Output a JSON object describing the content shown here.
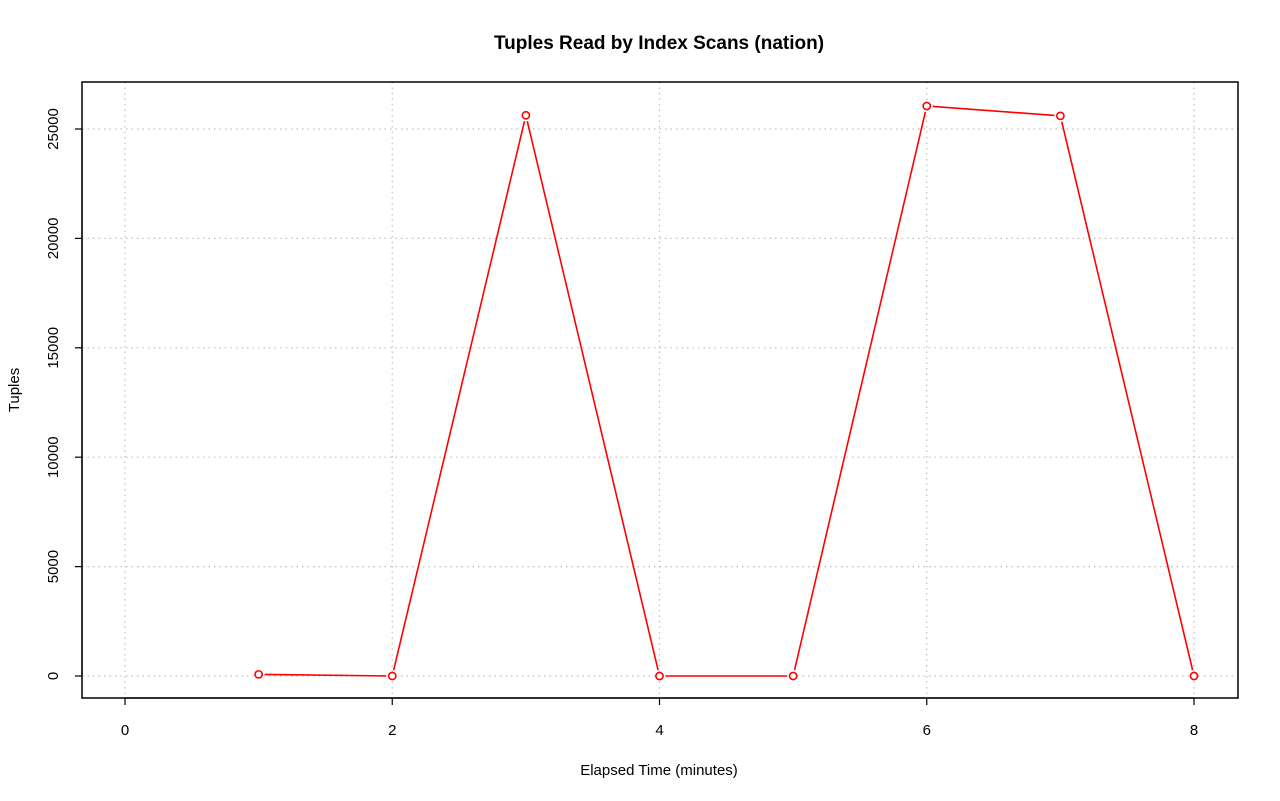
{
  "chart_data": {
    "type": "line",
    "title": "Tuples Read by Index Scans (nation)",
    "xlabel": "Elapsed Time (minutes)",
    "ylabel": "Tuples",
    "xlim": [
      0,
      8
    ],
    "ylim": [
      0,
      26000
    ],
    "x_ticks": [
      0,
      2,
      4,
      6,
      8
    ],
    "y_ticks": [
      0,
      5000,
      10000,
      15000,
      20000,
      25000
    ],
    "grid": true,
    "series": [
      {
        "color": "#ff0000",
        "x": [
          1,
          2,
          3,
          4,
          5,
          6,
          7,
          8
        ],
        "values": [
          75,
          0,
          25625,
          0,
          0,
          26050,
          25600,
          0
        ]
      }
    ]
  }
}
